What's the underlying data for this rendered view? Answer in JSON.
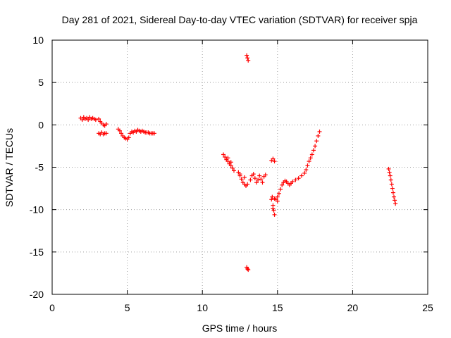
{
  "chart_data": {
    "type": "scatter",
    "title": "Day 281 of 2021, Sidereal Day-to-day VTEC variation (SDTVAR) for receiver spja",
    "xlabel": "GPS time / hours",
    "ylabel": "SDTVAR / TECUs",
    "xlim": [
      0,
      25
    ],
    "ylim": [
      -20,
      10
    ],
    "xticks": [
      0,
      5,
      10,
      15,
      20,
      25
    ],
    "yticks": [
      -20,
      -15,
      -10,
      -5,
      0,
      5,
      10
    ],
    "grid": true,
    "marker": "plus",
    "color": "#ff0000",
    "series": [
      {
        "points": [
          [
            1.9,
            0.8
          ],
          [
            2.0,
            0.6
          ],
          [
            2.1,
            0.9
          ],
          [
            2.2,
            0.7
          ],
          [
            2.3,
            0.8
          ],
          [
            2.4,
            0.6
          ],
          [
            2.5,
            0.9
          ],
          [
            2.6,
            0.7
          ],
          [
            2.7,
            0.8
          ],
          [
            2.8,
            0.7
          ],
          [
            2.9,
            0.6
          ],
          [
            3.1,
            0.7
          ],
          [
            3.2,
            0.4
          ],
          [
            3.3,
            0.2
          ],
          [
            3.4,
            0.0
          ],
          [
            3.5,
            -0.1
          ],
          [
            3.6,
            0.1
          ],
          [
            3.1,
            -1.0
          ],
          [
            3.2,
            -1.1
          ],
          [
            3.3,
            -0.9
          ],
          [
            3.4,
            -1.1
          ],
          [
            3.5,
            -1.0
          ],
          [
            3.6,
            -1.0
          ],
          [
            4.4,
            -0.5
          ],
          [
            4.5,
            -0.7
          ],
          [
            4.6,
            -1.0
          ],
          [
            4.7,
            -1.3
          ],
          [
            4.8,
            -1.5
          ],
          [
            4.9,
            -1.6
          ],
          [
            5.0,
            -1.7
          ],
          [
            5.1,
            -1.5
          ],
          [
            5.2,
            -1.0
          ],
          [
            5.3,
            -0.8
          ],
          [
            5.4,
            -0.9
          ],
          [
            5.5,
            -0.7
          ],
          [
            5.6,
            -0.8
          ],
          [
            5.7,
            -0.6
          ],
          [
            5.8,
            -0.7
          ],
          [
            5.9,
            -0.8
          ],
          [
            6.0,
            -0.7
          ],
          [
            6.1,
            -0.8
          ],
          [
            6.2,
            -0.9
          ],
          [
            6.3,
            -0.9
          ],
          [
            6.4,
            -0.9
          ],
          [
            6.5,
            -1.0
          ],
          [
            6.6,
            -1.0
          ],
          [
            6.7,
            -1.0
          ],
          [
            6.8,
            -1.0
          ],
          [
            11.4,
            -3.5
          ],
          [
            11.5,
            -3.8
          ],
          [
            11.6,
            -4.1
          ],
          [
            11.7,
            -4.3
          ],
          [
            11.8,
            -4.6
          ],
          [
            11.9,
            -4.8
          ],
          [
            12.0,
            -5.1
          ],
          [
            12.1,
            -5.4
          ],
          [
            11.7,
            -3.9
          ],
          [
            11.9,
            -4.4
          ],
          [
            12.4,
            -5.6
          ],
          [
            12.5,
            -6.0
          ],
          [
            12.6,
            -6.4
          ],
          [
            12.7,
            -6.8
          ],
          [
            12.8,
            -7.0
          ],
          [
            12.9,
            -7.2
          ],
          [
            13.0,
            -7.0
          ],
          [
            12.5,
            -5.8
          ],
          [
            12.8,
            -6.2
          ],
          [
            13.2,
            -6.5
          ],
          [
            13.3,
            -6.0
          ],
          [
            13.4,
            -5.8
          ],
          [
            13.5,
            -6.3
          ],
          [
            13.6,
            -6.8
          ],
          [
            13.7,
            -6.5
          ],
          [
            13.8,
            -6.0
          ],
          [
            13.9,
            -6.4
          ],
          [
            14.0,
            -6.8
          ],
          [
            14.1,
            -6.1
          ],
          [
            14.2,
            -5.9
          ],
          [
            14.6,
            -4.2
          ],
          [
            14.7,
            -4.0
          ],
          [
            14.8,
            -4.3
          ],
          [
            14.6,
            -8.8
          ],
          [
            14.7,
            -9.5
          ],
          [
            14.75,
            -10.1
          ],
          [
            14.8,
            -10.6
          ],
          [
            14.65,
            -8.5
          ],
          [
            14.7,
            -9.9
          ],
          [
            14.8,
            -8.7
          ],
          [
            14.9,
            -8.8
          ],
          [
            15.0,
            -8.5
          ],
          [
            15.0,
            -9.0
          ],
          [
            15.1,
            -8.1
          ],
          [
            15.2,
            -7.6
          ],
          [
            15.3,
            -7.1
          ],
          [
            15.4,
            -6.8
          ],
          [
            15.5,
            -6.6
          ],
          [
            15.6,
            -6.7
          ],
          [
            15.7,
            -6.9
          ],
          [
            15.8,
            -7.1
          ],
          [
            15.9,
            -6.9
          ],
          [
            16.0,
            -6.7
          ],
          [
            16.2,
            -6.5
          ],
          [
            16.4,
            -6.3
          ],
          [
            16.6,
            -6.0
          ],
          [
            16.8,
            -5.7
          ],
          [
            16.9,
            -5.3
          ],
          [
            17.0,
            -4.8
          ],
          [
            17.1,
            -4.3
          ],
          [
            17.2,
            -3.9
          ],
          [
            17.3,
            -3.5
          ],
          [
            17.4,
            -3.0
          ],
          [
            17.5,
            -2.5
          ],
          [
            17.6,
            -1.9
          ],
          [
            17.7,
            -1.3
          ],
          [
            17.8,
            -0.8
          ],
          [
            22.4,
            -5.2
          ],
          [
            22.45,
            -5.6
          ],
          [
            22.5,
            -6.0
          ],
          [
            22.55,
            -6.5
          ],
          [
            22.6,
            -7.0
          ],
          [
            22.65,
            -7.5
          ],
          [
            22.7,
            -8.0
          ],
          [
            22.75,
            -8.5
          ],
          [
            22.8,
            -8.9
          ],
          [
            22.85,
            -9.3
          ],
          [
            12.95,
            8.2
          ],
          [
            13.0,
            7.9
          ],
          [
            13.05,
            7.6
          ],
          [
            12.95,
            -16.8
          ],
          [
            13.0,
            -17.0
          ],
          [
            13.05,
            -17.1
          ]
        ]
      }
    ]
  }
}
